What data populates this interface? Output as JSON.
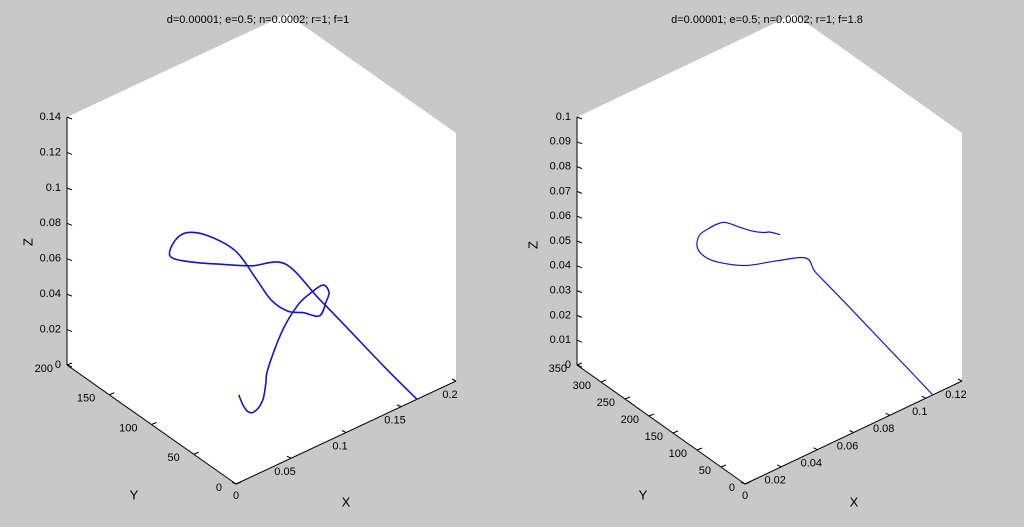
{
  "figure": {
    "background": "#c8c8c8",
    "face_color": "#ffffff",
    "edge_color": "#000000"
  },
  "chart_data": [
    {
      "type": "line",
      "title": "d=0.00001; e=0.5; n=0.0002; r=1; f=1",
      "xlabel": "X",
      "ylabel": "Y",
      "zlabel": "Z",
      "xlim": [
        0,
        0.2
      ],
      "ylim": [
        0,
        200
      ],
      "zlim": [
        0,
        0.14
      ],
      "xticks": [
        "0",
        "0.05",
        "0.1",
        "0.15",
        "0.2"
      ],
      "yticks": [
        "0",
        "50",
        "100",
        "150",
        "200"
      ],
      "zticks": [
        "0",
        "0.02",
        "0.04",
        "0.06",
        "0.08",
        "0.1",
        "0.12",
        "0.14"
      ],
      "grid": false,
      "series_color": "#1515c8",
      "trajectory": [
        [
          0.1645,
          0.0,
          0.0
        ],
        [
          0.1715,
          46,
          0.0
        ],
        [
          0.1825,
          109,
          0.0
        ],
        [
          0.1892,
          149,
          0.0
        ],
        [
          0.1975,
          199,
          0.0
        ],
        [
          0.164,
          195,
          0.01
        ],
        [
          0.1345,
          193.4,
          0.02
        ],
        [
          0.106,
          192.4,
          0.03
        ],
        [
          0.0885,
          193.1,
          0.038
        ],
        [
          0.0975,
          199.3,
          0.042
        ],
        [
          0.11,
          200.8,
          0.0425
        ],
        [
          0.1279,
          198.9,
          0.036
        ],
        [
          0.1474,
          192,
          0.024
        ],
        [
          0.1598,
          184.2,
          0.0075
        ],
        [
          0.1688,
          178.2,
          -0.005
        ],
        [
          0.1788,
          171.5,
          -0.012
        ],
        [
          0.1883,
          165.1,
          -0.0135
        ],
        [
          0.198,
          158.9,
          -0.016
        ],
        [
          0.2004,
          154.1,
          -0.007
        ],
        [
          0.1995,
          149.7,
          0.0
        ],
        [
          0.1894,
          143.6,
          0.009
        ],
        [
          0.1715,
          135.8,
          0.012
        ],
        [
          0.1538,
          127.7,
          0.013
        ],
        [
          0.1327,
          118.5,
          0.0075
        ],
        [
          0.1114,
          107.3,
          -0.0035
        ],
        [
          0.1044,
          100.6,
          -0.0075
        ],
        [
          0.0956,
          91.9,
          -0.01
        ],
        [
          0.0875,
          85.2,
          -0.0095
        ],
        [
          0.081,
          80.0,
          -0.008
        ],
        [
          0.0694,
          70.5,
          -0.0035
        ],
        [
          0.0578,
          61.1,
          0.0035
        ],
        [
          0.0475,
          53.1,
          0.0125
        ],
        [
          0.037,
          44.9,
          0.0245
        ]
      ]
    },
    {
      "type": "line",
      "title": "d=0.00001; e=0.5; n=0.0002; r=1; f=1.8",
      "xlabel": "X",
      "ylabel": "Y",
      "zlabel": "Z",
      "xlim": [
        0,
        0.12
      ],
      "ylim": [
        0,
        350
      ],
      "zlim": [
        0,
        0.1
      ],
      "xticks": [
        "0",
        "0.02",
        "0.04",
        "0.06",
        "0.08",
        "0.1",
        "0.12"
      ],
      "yticks": [
        "0",
        "50",
        "100",
        "150",
        "200",
        "250",
        "300",
        "350"
      ],
      "zticks": [
        "0",
        "0.01",
        "0.02",
        "0.03",
        "0.04",
        "0.05",
        "0.06",
        "0.07",
        "0.08",
        "0.09",
        "0.1"
      ],
      "grid": false,
      "series_color": "#1515c8",
      "trajectory": [
        [
          0.1038,
          0.0,
          0.0
        ],
        [
          0.1072,
          56,
          0.0
        ],
        [
          0.1105,
          112,
          0.0
        ],
        [
          0.1143,
          175,
          0.0
        ],
        [
          0.1175,
          229,
          0.0
        ],
        [
          0.1203,
          278,
          0.0
        ],
        [
          0.1226,
          317,
          0.0
        ],
        [
          0.1223,
          334,
          0.003
        ],
        [
          0.1036,
          322.4,
          0.01
        ],
        [
          0.0828,
          309.6,
          0.017
        ],
        [
          0.0654,
          301.0,
          0.0255
        ],
        [
          0.057,
          298.7,
          0.031
        ],
        [
          0.0534,
          300.8,
          0.0358
        ],
        [
          0.0561,
          306.6,
          0.0388
        ],
        [
          0.0623,
          312.0,
          0.0385
        ],
        [
          0.0696,
          317.0,
          0.0375
        ],
        [
          0.0749,
          320.4,
          0.0355
        ],
        [
          0.0829,
          323.6,
          0.0305
        ],
        [
          0.0904,
          326.5,
          0.026
        ],
        [
          0.0976,
          329.2,
          0.0225
        ],
        [
          0.1017,
          330.9,
          0.021
        ],
        [
          0.1079,
          333.1,
          0.0175
        ]
      ]
    }
  ]
}
